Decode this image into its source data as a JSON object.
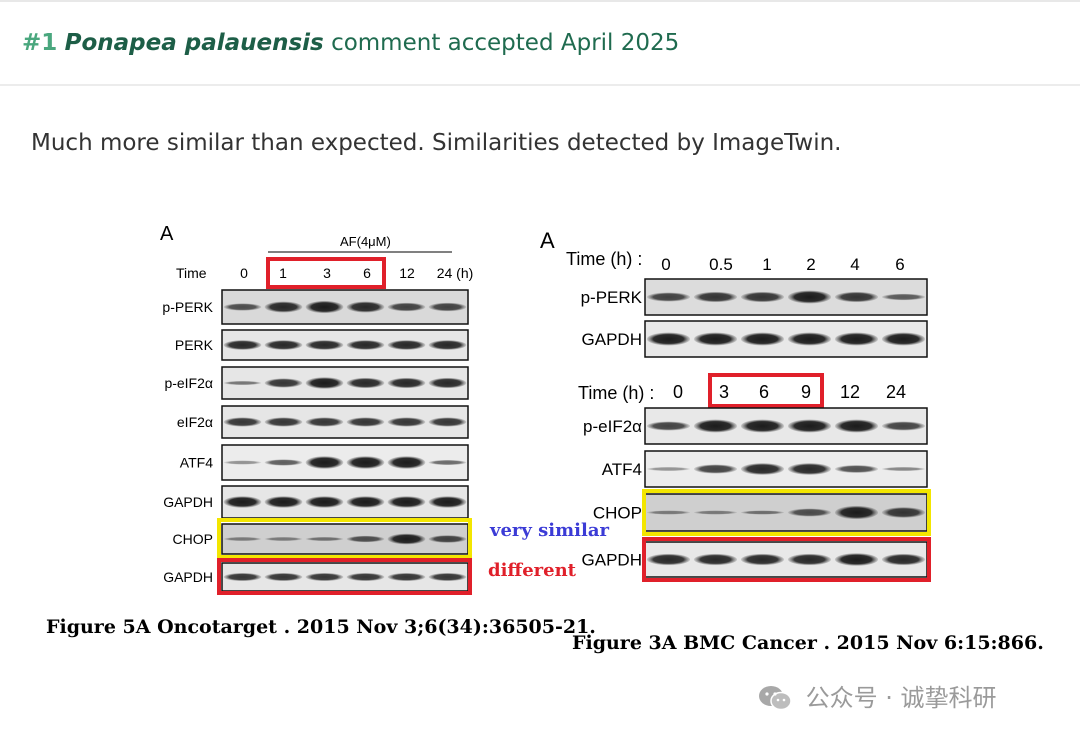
{
  "comment": {
    "number": "#1",
    "species": "Ponapea palauensis",
    "status": "comment accepted April 2025"
  },
  "body_text": "Much more similar than expected. Similarities detected by ImageTwin.",
  "left_figure": {
    "panel_letter": "A",
    "treatment": "AF(4μM)",
    "time_label": "Time",
    "timepoints": [
      "0",
      "1",
      "3",
      "6",
      "12",
      "24 (h)"
    ],
    "rows": [
      "p-PERK",
      "PERK",
      "p-eIF2α",
      "eIF2α",
      "ATF4",
      "GAPDH",
      "CHOP",
      "GAPDH"
    ],
    "caption": "Figure 5A Oncotarget . 2015 Nov 3;6(34):36505-21."
  },
  "right_figure": {
    "panel_letter": "A",
    "top_time_label": "Time (h) :",
    "top_timepoints": [
      "0",
      "0.5",
      "1",
      "2",
      "4",
      "6"
    ],
    "top_rows": [
      "p-PERK",
      "GAPDH"
    ],
    "bottom_time_label": "Time (h) :",
    "bottom_timepoints": [
      "0",
      "3",
      "6",
      "9",
      "12",
      "24"
    ],
    "bottom_rows": [
      "p-eIF2α",
      "ATF4",
      "CHOP",
      "GAPDH"
    ],
    "caption": "Figure 3A BMC Cancer . 2015 Nov 6:15:866."
  },
  "annotations": {
    "similar": "very similar",
    "different": "different",
    "similar_color": "#3b3bd6",
    "different_color": "#e0202a",
    "yellow_box": "#f3e600",
    "red_box": "#e0202a"
  },
  "watermark": "公众号 · 诚挚科研"
}
